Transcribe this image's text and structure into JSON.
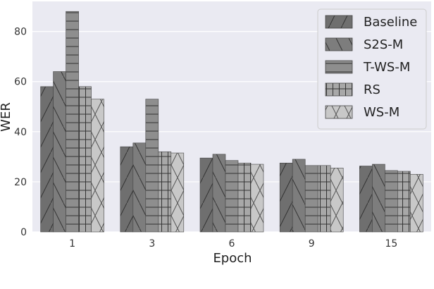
{
  "chart_data": {
    "type": "bar",
    "xlabel": "Epoch",
    "ylabel": "WER",
    "categories": [
      "1",
      "3",
      "6",
      "9",
      "15"
    ],
    "ylim": [
      0,
      92
    ],
    "yticks": [
      0,
      20,
      40,
      60,
      80
    ],
    "grid": true,
    "legend_position": "top-right",
    "series": [
      {
        "name": "Baseline",
        "values": [
          58,
          34,
          29.5,
          27.5,
          26.3
        ],
        "color": "#6f6f6f",
        "pattern": "forward-diagonal"
      },
      {
        "name": "S2S-M",
        "values": [
          64,
          35.5,
          31,
          29,
          27
        ],
        "color": "#7d7d7d",
        "pattern": "back-diagonal"
      },
      {
        "name": "T-WS-M",
        "values": [
          88,
          53,
          28.5,
          26.5,
          24.5
        ],
        "color": "#8e8e8e",
        "pattern": "horizontal"
      },
      {
        "name": "RS",
        "values": [
          58,
          32,
          27.5,
          26.5,
          24.2
        ],
        "color": "#a8a8a8",
        "pattern": "grid"
      },
      {
        "name": "WS-M",
        "values": [
          53,
          31.5,
          27,
          25.5,
          23
        ],
        "color": "#c8c8c8",
        "pattern": "crosshatch"
      }
    ]
  }
}
